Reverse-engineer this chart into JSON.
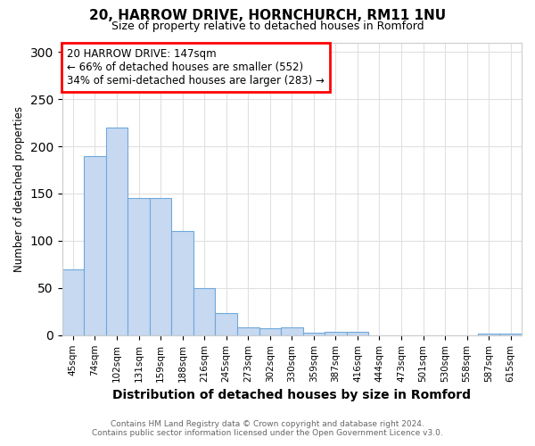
{
  "title1": "20, HARROW DRIVE, HORNCHURCH, RM11 1NU",
  "title2": "Size of property relative to detached houses in Romford",
  "xlabel": "Distribution of detached houses by size in Romford",
  "ylabel": "Number of detached properties",
  "footer1": "Contains HM Land Registry data © Crown copyright and database right 2024.",
  "footer2": "Contains public sector information licensed under the Open Government Licence v3.0.",
  "categories": [
    "45sqm",
    "74sqm",
    "102sqm",
    "131sqm",
    "159sqm",
    "188sqm",
    "216sqm",
    "245sqm",
    "273sqm",
    "302sqm",
    "330sqm",
    "359sqm",
    "387sqm",
    "416sqm",
    "444sqm",
    "473sqm",
    "501sqm",
    "530sqm",
    "558sqm",
    "587sqm",
    "615sqm"
  ],
  "values": [
    70,
    190,
    220,
    145,
    145,
    110,
    50,
    23,
    8,
    7,
    8,
    3,
    4,
    4,
    0,
    0,
    0,
    0,
    0,
    2,
    2
  ],
  "bar_color": "#c6d9f0",
  "bar_edge_color": "#6fa8dc",
  "annotation_text1": "20 HARROW DRIVE: 147sqm",
  "annotation_text2": "← 66% of detached houses are smaller (552)",
  "annotation_text3": "34% of semi-detached houses are larger (283) →",
  "annotation_box_color": "white",
  "annotation_box_edgecolor": "red",
  "ylim": [
    0,
    310
  ],
  "yticks": [
    0,
    50,
    100,
    150,
    200,
    250,
    300
  ],
  "background_color": "#ffffff",
  "grid_color": "#e0e0e0"
}
